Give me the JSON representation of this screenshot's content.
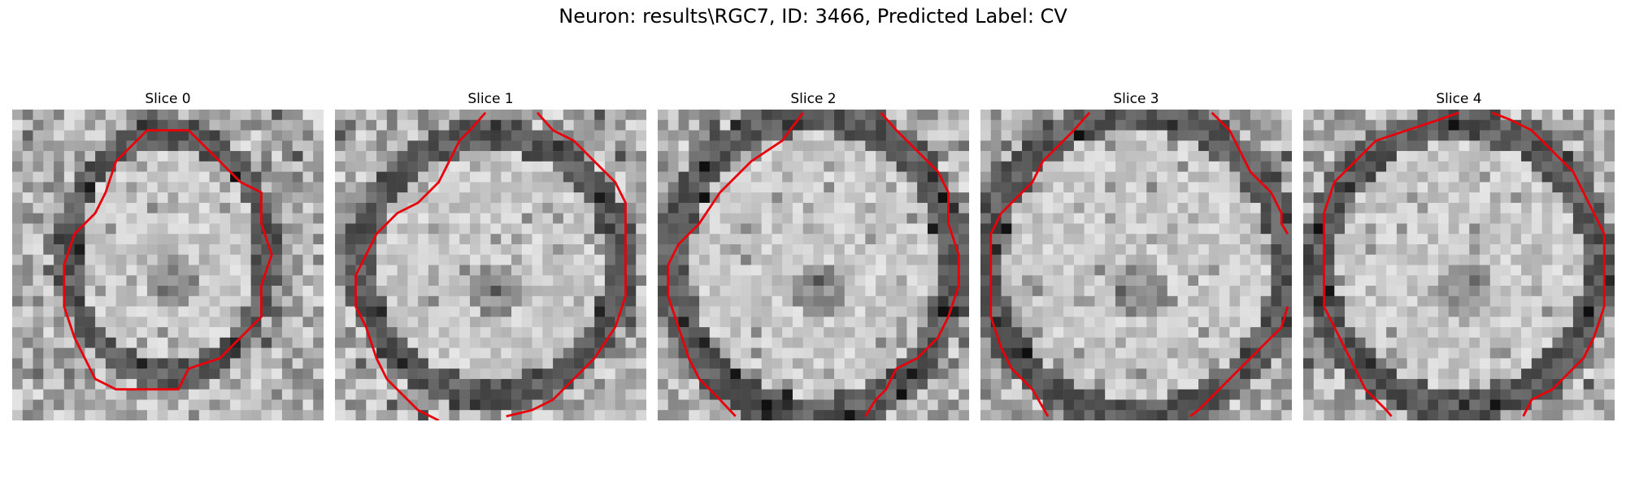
{
  "figure": {
    "suptitle": "Neuron: results\\RGC7, ID: 3466, Predicted Label: CV",
    "contour_color": "#e8000b",
    "colormap": "gray"
  },
  "slices": [
    {
      "title": "Slice 0"
    },
    {
      "title": "Slice 1"
    },
    {
      "title": "Slice 2"
    },
    {
      "title": "Slice 3"
    },
    {
      "title": "Slice 4"
    }
  ]
}
